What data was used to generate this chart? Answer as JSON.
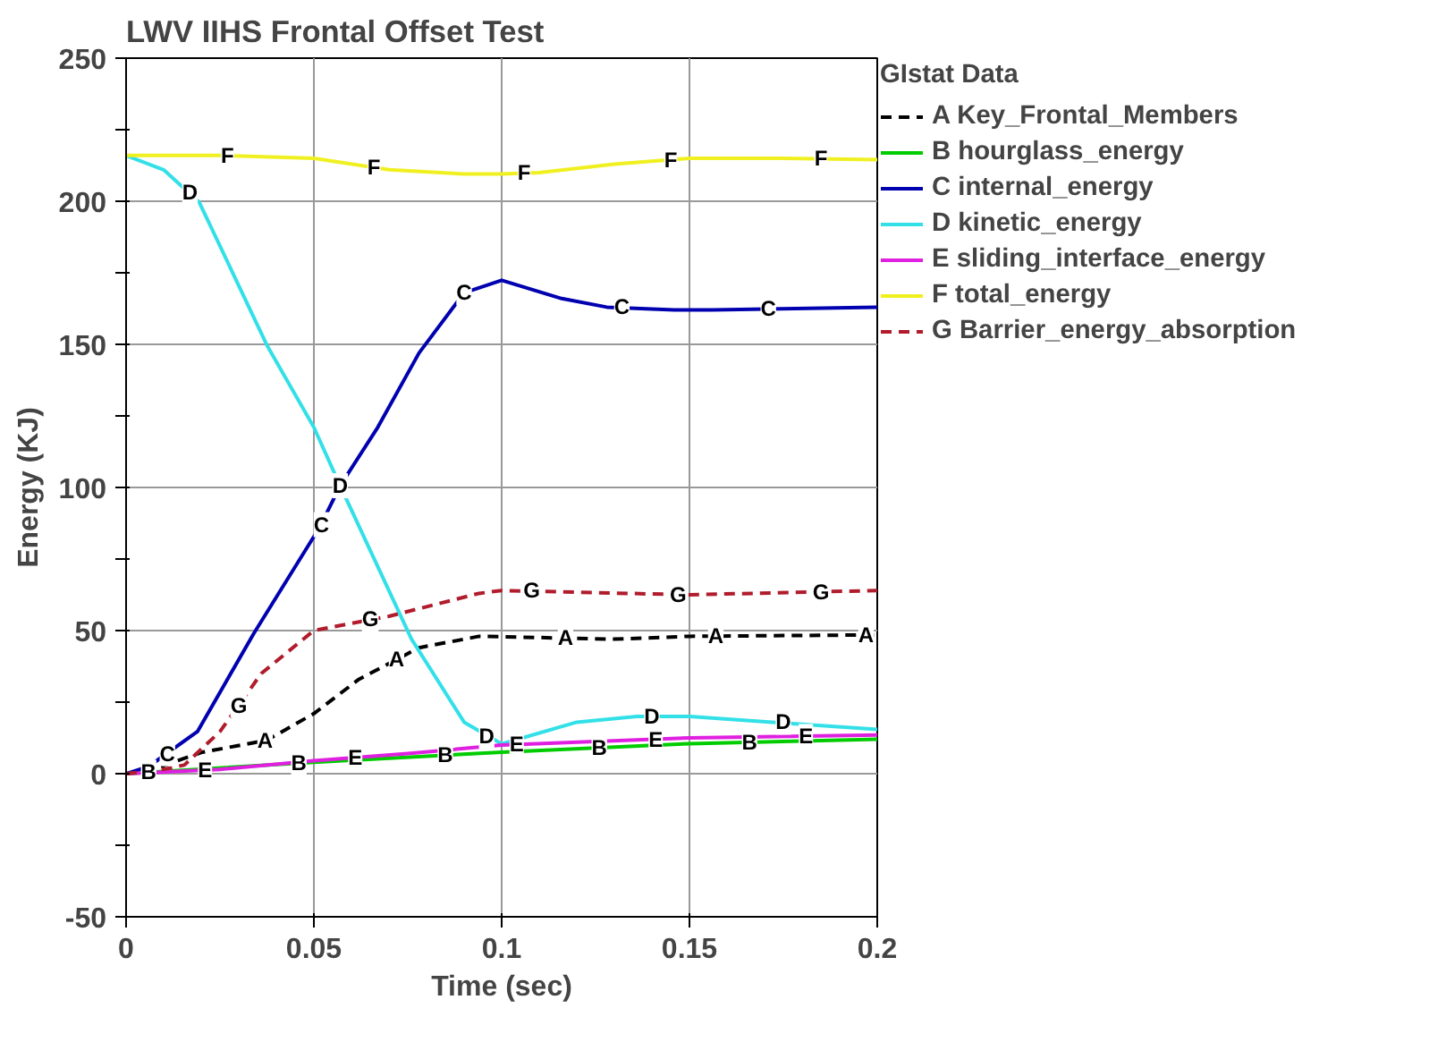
{
  "chart_data": {
    "type": "line",
    "title": "LWV IIHS Frontal Offset Test",
    "xlabel": "Time (sec)",
    "ylabel": "Energy (KJ)",
    "legend_title": "GIstat Data",
    "xlim": [
      0,
      0.2
    ],
    "xticks": [
      0,
      0.05,
      0.1,
      0.15,
      0.2
    ],
    "ylim": [
      -50,
      250
    ],
    "yticks": [
      -50,
      {
        "value": -25,
        "label": null
      },
      0,
      {
        "value": 25,
        "label": null
      },
      50,
      {
        "value": 75,
        "label": null
      },
      100,
      {
        "value": 125,
        "label": null
      },
      150,
      {
        "value": 175,
        "label": null
      },
      200,
      {
        "value": 225,
        "label": null
      },
      250
    ],
    "grid": true,
    "legend": "top right",
    "series": [
      {
        "name": "A Key_Frontal_Members",
        "color": "#000000",
        "line_style": "dashed",
        "x": [
          0,
          0.006,
          0.02,
          0.0375,
          0.05,
          0.062,
          0.078,
          0.094,
          0.13,
          0.15,
          0.2
        ],
        "values": [
          0,
          1,
          7.4,
          11.7,
          21,
          33,
          44,
          48,
          47,
          48,
          48.5
        ]
      },
      {
        "name": "B hourglass_energy",
        "color": "#00cc00",
        "x": [
          0,
          0.05,
          0.1,
          0.15,
          0.2
        ],
        "values": [
          0,
          4,
          7.5,
          10.5,
          12
        ]
      },
      {
        "name": "C internal_energy",
        "color": "#0000b0",
        "x": [
          0,
          0.006,
          0.019,
          0.034,
          0.0515,
          0.057,
          0.067,
          0.078,
          0.09,
          0.1,
          0.116,
          0.128,
          0.146,
          0.156,
          0.2
        ],
        "values": [
          0,
          2.5,
          14.7,
          49,
          86,
          100.6,
          121,
          147,
          168,
          172.4,
          166,
          163,
          162,
          162,
          163
        ]
      },
      {
        "name": "D kinetic_energy",
        "color": "#33e0e8",
        "x": [
          0,
          0.01,
          0.0195,
          0.0375,
          0.05,
          0.057,
          0.076,
          0.09,
          0.1,
          0.12,
          0.136,
          0.15,
          0.172,
          0.2
        ],
        "values": [
          216,
          211,
          199.6,
          149.7,
          121,
          100.6,
          47,
          18,
          10.4,
          18,
          20,
          20,
          18,
          15.5
        ]
      },
      {
        "name": "E sliding_interface_energy",
        "color": "#e020e0",
        "x": [
          0,
          0.025,
          0.05,
          0.075,
          0.1,
          0.15,
          0.2
        ],
        "values": [
          0,
          1.5,
          4.5,
          7,
          10,
          12.5,
          13.5
        ]
      },
      {
        "name": "F total_energy",
        "color": "#f0f020",
        "x": [
          0,
          0.025,
          0.05,
          0.07,
          0.09,
          0.1,
          0.11,
          0.13,
          0.15,
          0.175,
          0.2
        ],
        "values": [
          216,
          216,
          215,
          211,
          209.5,
          209.5,
          210,
          213,
          215,
          215,
          214.5
        ]
      },
      {
        "name": "G Barrier_energy_absorption",
        "color": "#b01c2c",
        "line_style": "dashed",
        "x": [
          0,
          0.008,
          0.0155,
          0.025,
          0.036,
          0.05,
          0.07,
          0.094,
          0.1,
          0.15,
          0.2
        ],
        "values": [
          0,
          1,
          3,
          14.7,
          35,
          50,
          55,
          63,
          64,
          62.5,
          64
        ]
      }
    ],
    "annotations": [
      {
        "text": "F",
        "x": 0.027,
        "y": 216
      },
      {
        "text": "F",
        "x": 0.066,
        "y": 212
      },
      {
        "text": "F",
        "x": 0.106,
        "y": 210
      },
      {
        "text": "F",
        "x": 0.145,
        "y": 214.5
      },
      {
        "text": "F",
        "x": 0.185,
        "y": 215
      },
      {
        "text": "D",
        "x": 0.017,
        "y": 203
      },
      {
        "text": "D",
        "x": 0.057,
        "y": 100.6
      },
      {
        "text": "D",
        "x": 0.096,
        "y": 13
      },
      {
        "text": "D",
        "x": 0.14,
        "y": 20
      },
      {
        "text": "D",
        "x": 0.175,
        "y": 18
      },
      {
        "text": "C",
        "x": 0.011,
        "y": 7
      },
      {
        "text": "C",
        "x": 0.052,
        "y": 87
      },
      {
        "text": "C",
        "x": 0.09,
        "y": 168
      },
      {
        "text": "C",
        "x": 0.132,
        "y": 163
      },
      {
        "text": "C",
        "x": 0.171,
        "y": 162.5
      },
      {
        "text": "G",
        "x": 0.03,
        "y": 23.9
      },
      {
        "text": "G",
        "x": 0.065,
        "y": 54
      },
      {
        "text": "G",
        "x": 0.108,
        "y": 64
      },
      {
        "text": "G",
        "x": 0.147,
        "y": 62.5
      },
      {
        "text": "G",
        "x": 0.185,
        "y": 63.5
      },
      {
        "text": "A",
        "x": 0.037,
        "y": 11.5
      },
      {
        "text": "A",
        "x": 0.072,
        "y": 39.9
      },
      {
        "text": "A",
        "x": 0.117,
        "y": 47.5
      },
      {
        "text": "A",
        "x": 0.157,
        "y": 48
      },
      {
        "text": "A",
        "x": 0.197,
        "y": 48.5
      },
      {
        "text": "B",
        "x": 0.006,
        "y": 0.5
      },
      {
        "text": "B",
        "x": 0.046,
        "y": 3.7
      },
      {
        "text": "B",
        "x": 0.085,
        "y": 6.5
      },
      {
        "text": "B",
        "x": 0.126,
        "y": 9.1
      },
      {
        "text": "B",
        "x": 0.166,
        "y": 11
      },
      {
        "text": "E",
        "x": 0.021,
        "y": 1.3
      },
      {
        "text": "E",
        "x": 0.061,
        "y": 5.6
      },
      {
        "text": "E",
        "x": 0.104,
        "y": 10.2
      },
      {
        "text": "E",
        "x": 0.141,
        "y": 12
      },
      {
        "text": "E",
        "x": 0.181,
        "y": 13
      }
    ]
  }
}
